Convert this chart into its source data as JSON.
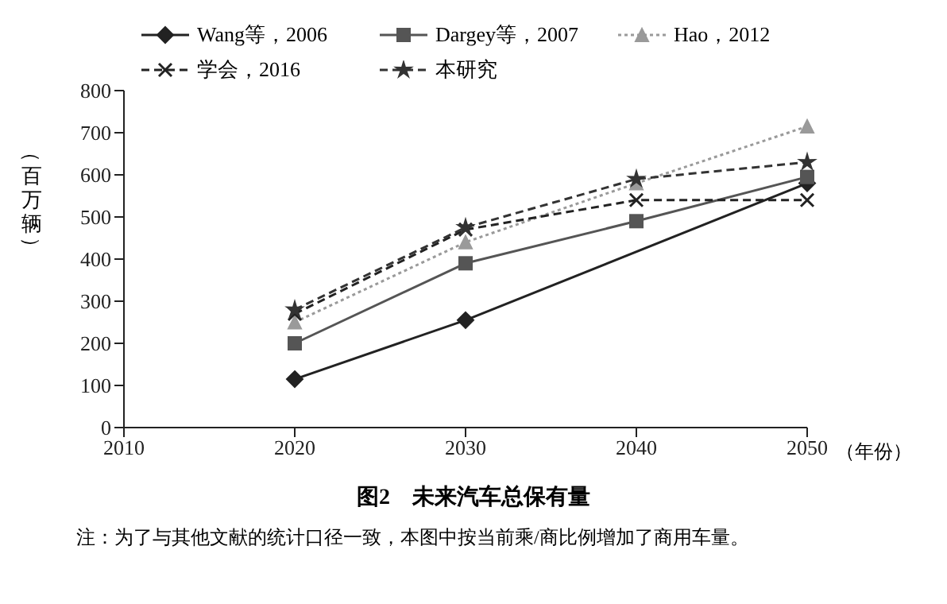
{
  "chart_data": {
    "type": "line",
    "title": "图2　未来汽车总保有量",
    "xlabel": "（年份）",
    "ylabel": "（百万辆）",
    "annotations": [
      "注：为了与其他文献的统计口径一致，本图中按当前乘/商比例增加了商用车量。"
    ],
    "x": [
      2020,
      2030,
      2040,
      2050
    ],
    "series": [
      {
        "name": "Wang等，2006",
        "color": "#222222",
        "marker": "diamond",
        "line_style": "solid",
        "values": [
          115,
          255,
          null,
          580
        ]
      },
      {
        "name": "Dargey等，2007",
        "color": "#555555",
        "marker": "square",
        "line_style": "solid",
        "values": [
          200,
          390,
          490,
          595
        ]
      },
      {
        "name": "Hao，2012",
        "color": "#9a9a9a",
        "marker": "triangle",
        "line_style": "dotted",
        "values": [
          250,
          440,
          580,
          715
        ]
      },
      {
        "name": "学会，2016",
        "color": "#222222",
        "marker": "cross",
        "line_style": "dashed",
        "values": [
          270,
          470,
          540,
          540
        ]
      },
      {
        "name": "本研究",
        "color": "#333333",
        "marker": "star",
        "line_style": "dashed",
        "values": [
          280,
          475,
          590,
          630
        ]
      }
    ],
    "xlim": [
      2010,
      2050
    ],
    "xticks": [
      2010,
      2020,
      2030,
      2040,
      2050
    ],
    "ylim": [
      0,
      800
    ],
    "yticks": [
      0,
      100,
      200,
      300,
      400,
      500,
      600,
      700,
      800
    ],
    "grid": false,
    "legend": "top"
  }
}
